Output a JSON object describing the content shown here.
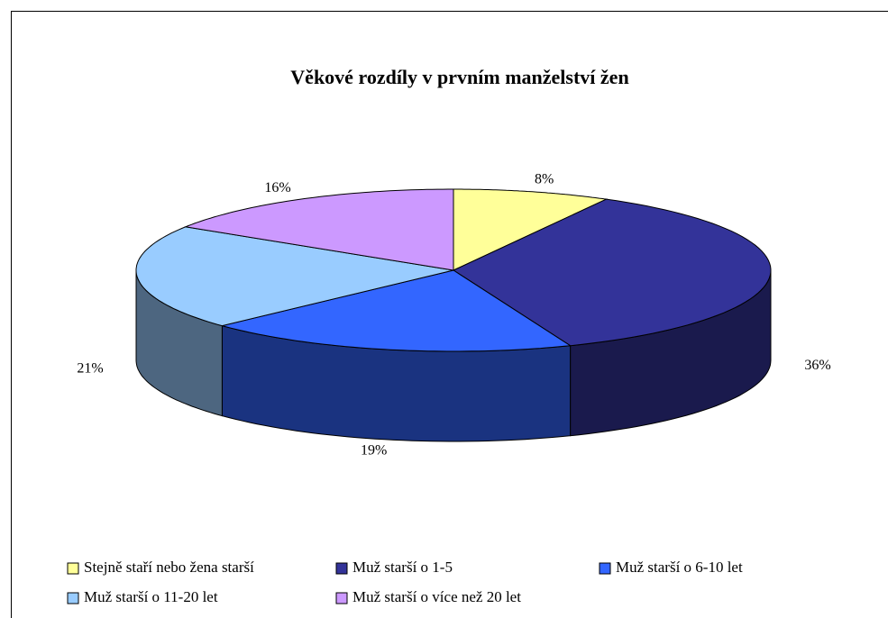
{
  "chart_data": {
    "type": "pie3d",
    "title": "Věkové rozdíly v prvním manželství žen",
    "categories": [
      "Stejně staří nebo žena starší",
      "Muž starší o 1-5",
      "Muž starší o 6-10 let",
      "Muž starší o 11-20 let",
      "Muž starší o více než 20 let"
    ],
    "values": [
      8,
      36,
      19,
      21,
      16
    ],
    "value_labels": [
      "8%",
      "36%",
      "19%",
      "21%",
      "16%"
    ],
    "colors": [
      "#ffff99",
      "#333399",
      "#3366ff",
      "#99ccff",
      "#cc99ff"
    ],
    "legend": "bottom"
  }
}
